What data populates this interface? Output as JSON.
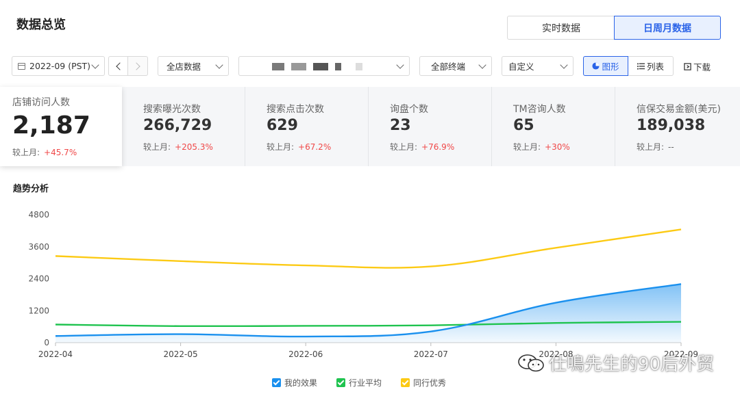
{
  "header": {
    "title": "数据总览",
    "toggle_realtime": "实时数据",
    "toggle_period": "日周月数据"
  },
  "filters": {
    "date": "2022-09 (PST)",
    "store": "全店数据",
    "terminal": "全部终端",
    "range": "自定义",
    "view_chart": "图形",
    "view_list": "列表",
    "download": "下载"
  },
  "kpis": [
    {
      "label": "店铺访问人数",
      "value": "2,187",
      "compare_label": "较上月:",
      "change": "+45.7%"
    },
    {
      "label": "搜索曝光次数",
      "value": "266,729",
      "compare_label": "较上月:",
      "change": "+205.3%"
    },
    {
      "label": "搜索点击次数",
      "value": "629",
      "compare_label": "较上月:",
      "change": "+67.2%"
    },
    {
      "label": "询盘个数",
      "value": "23",
      "compare_label": "较上月:",
      "change": "+76.9%"
    },
    {
      "label": "TM咨询人数",
      "value": "65",
      "compare_label": "较上月:",
      "change": "+30%"
    },
    {
      "label": "信保交易金额(美元)",
      "value": "189,038",
      "compare_label": "较上月:",
      "change": "--"
    }
  ],
  "trend": {
    "title": "趋势分析"
  },
  "chart_data": {
    "type": "line",
    "x": [
      "2022-04",
      "2022-05",
      "2022-06",
      "2022-07",
      "2022-08",
      "2022-09"
    ],
    "ylim": [
      0,
      4800
    ],
    "yticks": [
      0,
      1200,
      2400,
      3600,
      4800
    ],
    "series": [
      {
        "name": "我的效果",
        "color": "#1a90ee",
        "values": [
          250,
          320,
          230,
          420,
          1500,
          2200
        ]
      },
      {
        "name": "行业平均",
        "color": "#1fc34f",
        "values": [
          680,
          620,
          630,
          650,
          740,
          780
        ]
      },
      {
        "name": "同行优秀",
        "color": "#fcca14",
        "values": [
          3250,
          3060,
          2900,
          2860,
          3560,
          4250
        ]
      }
    ],
    "legend_position": "bottom"
  },
  "watermark": "仕鳴先生的90后外贸"
}
